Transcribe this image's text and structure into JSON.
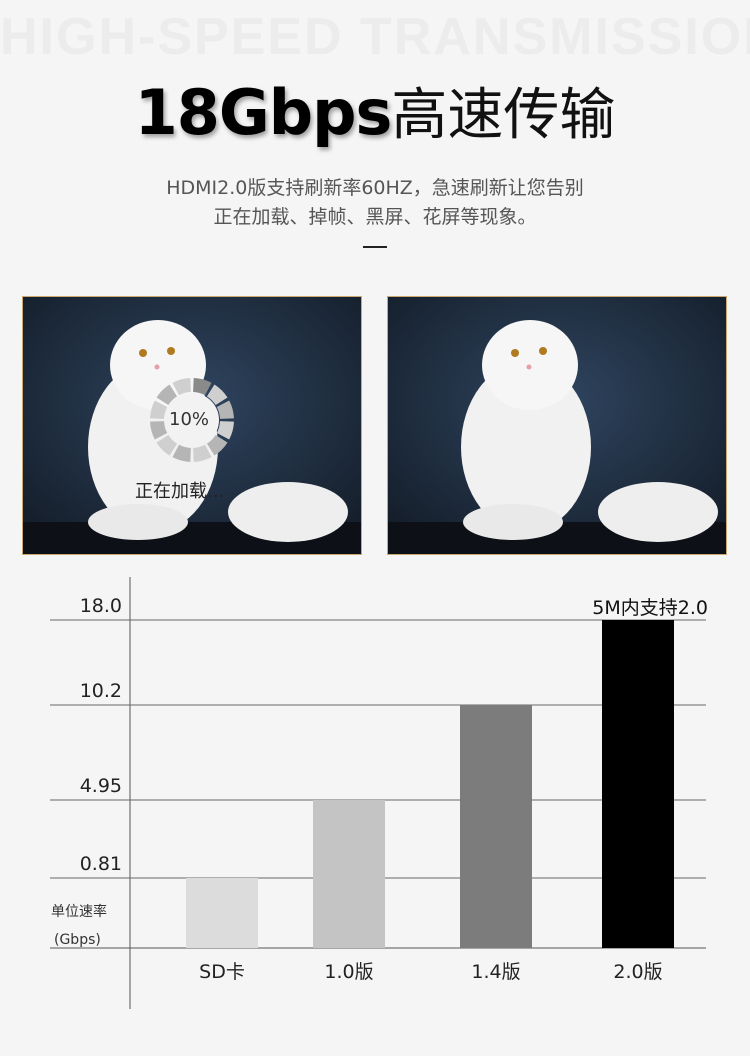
{
  "header": {
    "watermark": "HIGH-SPEED TRANSMISSION",
    "title_bold": "18Gbps",
    "title_light": "高速传输",
    "subtitle_line1": "HDMI2.0版支持刷新率60HZ，急速刷新让您告别",
    "subtitle_line2": "正在加载、掉帧、黑屏、花屏等现象。"
  },
  "images": {
    "left": {
      "loading_percent": "10%",
      "loading_text": "正在加载...",
      "progress": 10
    },
    "right": {}
  },
  "colors": {
    "background": "#f5f5f5",
    "photo_bg": "#1e2b3c",
    "frame": "#c9a970"
  },
  "chart_data": {
    "type": "bar",
    "categories": [
      "SD卡",
      "1.0版",
      "1.4版",
      "2.0版"
    ],
    "values": [
      0.81,
      4.95,
      10.2,
      18.0
    ],
    "bar_colors": [
      "#dcdcdc",
      "#c4c4c4",
      "#7c7c7c",
      "#000000"
    ],
    "yticks": [
      "0.81",
      "4.95",
      "10.2",
      "18.0"
    ],
    "ylabel_line1": "单位速率",
    "ylabel_line2": "(Gbps)",
    "annotation": "5M内支持2.0",
    "grid": true
  }
}
